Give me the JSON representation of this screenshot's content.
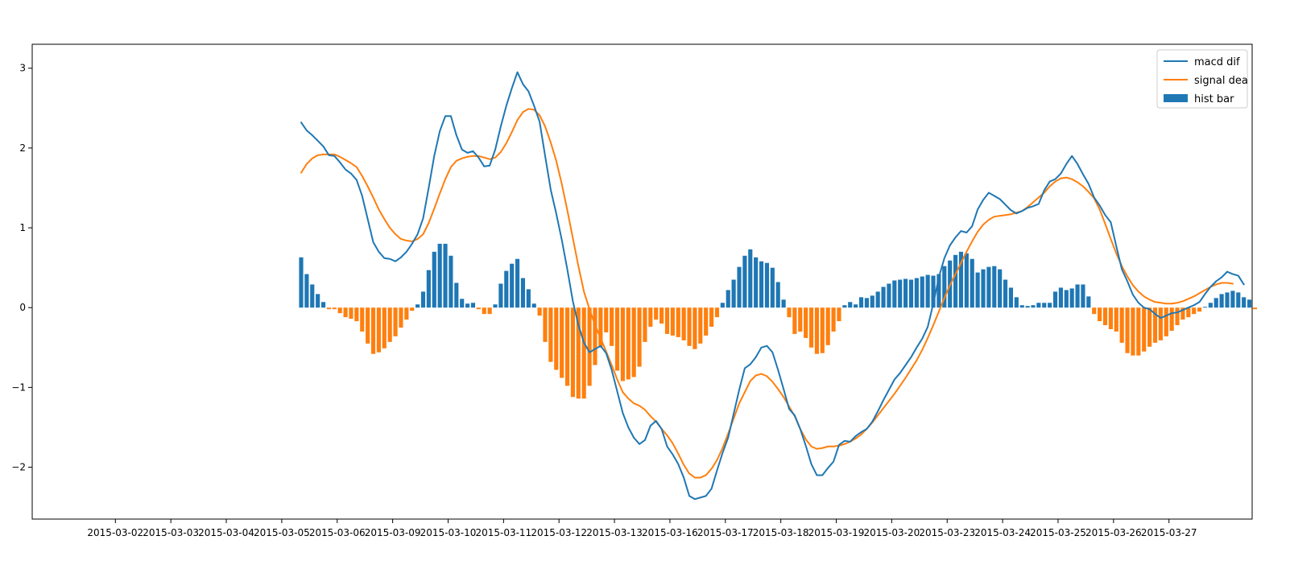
{
  "chart_data": {
    "type": "line",
    "title": "",
    "xlabel": "",
    "ylabel": "",
    "ylim": [
      -2.65,
      3.3
    ],
    "yticks": [
      -2,
      -1,
      0,
      1,
      2,
      3
    ],
    "ytick_labels": [
      "−2",
      "−1",
      "0",
      "1",
      "2",
      "3"
    ],
    "xtick_labels": [
      "2015-03-02",
      "2015-03-03",
      "2015-03-04",
      "2015-03-05",
      "2015-03-06",
      "2015-03-09",
      "2015-03-10",
      "2015-03-11",
      "2015-03-12",
      "2015-03-13",
      "2015-03-16",
      "2015-03-17",
      "2015-03-18",
      "2015-03-19",
      "2015-03-20",
      "2015-03-23",
      "2015-03-24",
      "2015-03-25",
      "2015-03-26",
      "2015-03-27"
    ],
    "x_index_range": [
      -0.5,
      21.5
    ],
    "legend": {
      "position": "upper-right",
      "entries": [
        {
          "label": "macd dif",
          "kind": "line",
          "color": "#1f77b4"
        },
        {
          "label": "signal dea",
          "kind": "line",
          "color": "#ff7f0e"
        },
        {
          "label": "hist bar",
          "kind": "bar",
          "color": "#1f77b4"
        }
      ]
    },
    "colors": {
      "dif": "#1f77b4",
      "dea": "#ff7f0e",
      "hist_pos": "#1f77b4",
      "hist_neg": "#ff7f0e"
    },
    "start_index": 4.35,
    "step": 0.1,
    "bar_width_fraction": 0.75,
    "series": [
      {
        "name": "macd dif",
        "values": [
          2.32,
          2.22,
          2.16,
          2.09,
          2.02,
          1.91,
          1.9,
          1.82,
          1.73,
          1.68,
          1.6,
          1.4,
          1.11,
          0.82,
          0.7,
          0.62,
          0.61,
          0.58,
          0.63,
          0.7,
          0.8,
          0.92,
          1.12,
          1.5,
          1.9,
          2.21,
          2.4,
          2.4,
          2.16,
          1.98,
          1.94,
          1.96,
          1.88,
          1.77,
          1.78,
          1.98,
          2.27,
          2.53,
          2.75,
          2.95,
          2.8,
          2.71,
          2.53,
          2.33,
          1.9,
          1.48,
          1.18,
          0.85,
          0.48,
          0.08,
          -0.22,
          -0.44,
          -0.56,
          -0.52,
          -0.48,
          -0.57,
          -0.78,
          -1.05,
          -1.32,
          -1.5,
          -1.63,
          -1.71,
          -1.66,
          -1.48,
          -1.42,
          -1.52,
          -1.74,
          -1.84,
          -1.96,
          -2.13,
          -2.36,
          -2.4,
          -2.38,
          -2.36,
          -2.27,
          -2.04,
          -1.82,
          -1.63,
          -1.33,
          -1.03,
          -0.76,
          -0.71,
          -0.62,
          -0.5,
          -0.48,
          -0.56,
          -0.78,
          -1.02,
          -1.27,
          -1.35,
          -1.52,
          -1.73,
          -1.96,
          -2.1,
          -2.1,
          -2.01,
          -1.93,
          -1.72,
          -1.67,
          -1.68,
          -1.61,
          -1.56,
          -1.52,
          -1.43,
          -1.3,
          -1.16,
          -1.03,
          -0.9,
          -0.82,
          -0.72,
          -0.62,
          -0.5,
          -0.39,
          -0.24,
          0.05,
          0.38,
          0.62,
          0.78,
          0.88,
          0.96,
          0.94,
          1.02,
          1.23,
          1.35,
          1.44,
          1.4,
          1.36,
          1.29,
          1.22,
          1.18,
          1.21,
          1.25,
          1.27,
          1.3,
          1.47,
          1.58,
          1.61,
          1.68,
          1.8,
          1.9,
          1.8,
          1.67,
          1.55,
          1.38,
          1.28,
          1.16,
          1.07,
          0.77,
          0.48,
          0.33,
          0.16,
          0.06,
          0.0,
          -0.02,
          -0.08,
          -0.13,
          -0.1,
          -0.07,
          -0.06,
          -0.03,
          0.0,
          0.03,
          0.07,
          0.17,
          0.26,
          0.33,
          0.38,
          0.45,
          0.42,
          0.4,
          0.29
        ]
      },
      {
        "name": "signal dea",
        "values": [
          1.69,
          1.8,
          1.87,
          1.91,
          1.92,
          1.92,
          1.92,
          1.89,
          1.85,
          1.81,
          1.76,
          1.65,
          1.52,
          1.38,
          1.23,
          1.11,
          1.0,
          0.92,
          0.86,
          0.84,
          0.83,
          0.86,
          0.92,
          1.06,
          1.24,
          1.43,
          1.61,
          1.76,
          1.84,
          1.87,
          1.89,
          1.9,
          1.9,
          1.88,
          1.86,
          1.88,
          1.95,
          2.06,
          2.2,
          2.35,
          2.45,
          2.49,
          2.48,
          2.41,
          2.27,
          2.07,
          1.84,
          1.55,
          1.22,
          0.87,
          0.52,
          0.2,
          -0.02,
          -0.22,
          -0.38,
          -0.55,
          -0.72,
          -0.9,
          -1.06,
          -1.14,
          -1.2,
          -1.23,
          -1.28,
          -1.36,
          -1.43,
          -1.52,
          -1.6,
          -1.7,
          -1.83,
          -1.97,
          -2.08,
          -2.13,
          -2.13,
          -2.1,
          -2.02,
          -1.91,
          -1.76,
          -1.58,
          -1.39,
          -1.2,
          -1.06,
          -0.92,
          -0.85,
          -0.83,
          -0.86,
          -0.93,
          -1.02,
          -1.12,
          -1.24,
          -1.36,
          -1.52,
          -1.65,
          -1.74,
          -1.77,
          -1.76,
          -1.74,
          -1.74,
          -1.73,
          -1.71,
          -1.68,
          -1.64,
          -1.59,
          -1.52,
          -1.44,
          -1.35,
          -1.26,
          -1.17,
          -1.08,
          -0.98,
          -0.88,
          -0.77,
          -0.66,
          -0.53,
          -0.38,
          -0.22,
          -0.05,
          0.12,
          0.28,
          0.42,
          0.56,
          0.7,
          0.83,
          0.95,
          1.04,
          1.1,
          1.14,
          1.15,
          1.16,
          1.17,
          1.19,
          1.21,
          1.26,
          1.32,
          1.38,
          1.44,
          1.52,
          1.58,
          1.62,
          1.63,
          1.61,
          1.57,
          1.52,
          1.45,
          1.37,
          1.23,
          1.05,
          0.86,
          0.68,
          0.52,
          0.39,
          0.28,
          0.2,
          0.14,
          0.1,
          0.07,
          0.06,
          0.05,
          0.05,
          0.06,
          0.08,
          0.11,
          0.14,
          0.18,
          0.22,
          0.26,
          0.29,
          0.31,
          0.31,
          0.3
        ]
      },
      {
        "name": "hist bar",
        "values": [
          0.63,
          0.42,
          0.29,
          0.17,
          0.07,
          -0.02,
          -0.02,
          -0.07,
          -0.12,
          -0.14,
          -0.17,
          -0.3,
          -0.45,
          -0.58,
          -0.56,
          -0.51,
          -0.43,
          -0.36,
          -0.25,
          -0.15,
          -0.04,
          0.04,
          0.2,
          0.47,
          0.7,
          0.8,
          0.8,
          0.65,
          0.31,
          0.11,
          0.05,
          0.06,
          -0.02,
          -0.08,
          -0.08,
          0.04,
          0.3,
          0.46,
          0.55,
          0.61,
          0.37,
          0.23,
          0.05,
          -0.1,
          -0.43,
          -0.68,
          -0.78,
          -0.88,
          -0.98,
          -1.12,
          -1.14,
          -1.14,
          -0.98,
          -0.72,
          -0.5,
          -0.31,
          -0.48,
          -0.79,
          -0.92,
          -0.9,
          -0.87,
          -0.74,
          -0.43,
          -0.24,
          -0.15,
          -0.2,
          -0.33,
          -0.35,
          -0.37,
          -0.41,
          -0.48,
          -0.52,
          -0.45,
          -0.35,
          -0.24,
          -0.12,
          0.06,
          0.22,
          0.35,
          0.51,
          0.65,
          0.73,
          0.63,
          0.58,
          0.56,
          0.5,
          0.32,
          0.1,
          -0.12,
          -0.33,
          -0.3,
          -0.38,
          -0.5,
          -0.58,
          -0.57,
          -0.47,
          -0.3,
          -0.17,
          0.03,
          0.07,
          0.04,
          0.13,
          0.12,
          0.15,
          0.2,
          0.26,
          0.3,
          0.34,
          0.35,
          0.36,
          0.35,
          0.37,
          0.39,
          0.41,
          0.4,
          0.42,
          0.52,
          0.59,
          0.66,
          0.7,
          0.68,
          0.61,
          0.44,
          0.48,
          0.51,
          0.52,
          0.48,
          0.35,
          0.25,
          0.13,
          0.03,
          0.02,
          0.03,
          0.06,
          0.06,
          0.06,
          0.2,
          0.25,
          0.22,
          0.24,
          0.29,
          0.29,
          0.14,
          -0.08,
          -0.17,
          -0.22,
          -0.27,
          -0.3,
          -0.44,
          -0.57,
          -0.6,
          -0.6,
          -0.55,
          -0.49,
          -0.44,
          -0.41,
          -0.36,
          -0.29,
          -0.22,
          -0.15,
          -0.12,
          -0.08,
          -0.05,
          0.01,
          0.06,
          0.12,
          0.17,
          0.19,
          0.21,
          0.19,
          0.13,
          0.1,
          -0.02
        ]
      }
    ]
  }
}
